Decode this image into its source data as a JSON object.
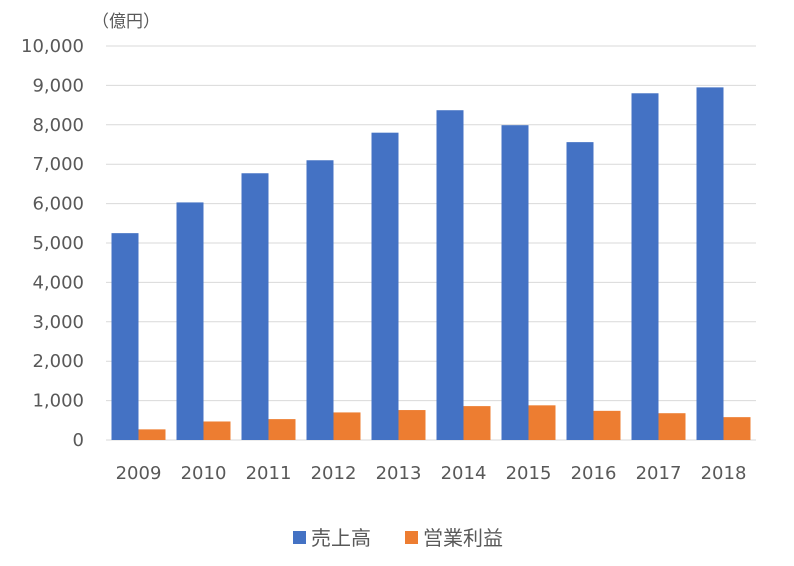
{
  "chart_data": {
    "type": "bar",
    "unit_label": "（億円）",
    "categories": [
      "2009",
      "2010",
      "2011",
      "2012",
      "2013",
      "2014",
      "2015",
      "2016",
      "2017",
      "2018"
    ],
    "series": [
      {
        "name": "売上高",
        "color": "#4472c4",
        "values": [
          5250,
          6030,
          6770,
          7100,
          7800,
          8370,
          7990,
          7560,
          8800,
          8950
        ]
      },
      {
        "name": "営業利益",
        "color": "#ed7d31",
        "values": [
          270,
          470,
          530,
          700,
          760,
          860,
          880,
          740,
          680,
          580
        ]
      }
    ],
    "ylim": [
      0,
      10000
    ],
    "yticks": [
      "0",
      "1,000",
      "2,000",
      "3,000",
      "4,000",
      "5,000",
      "6,000",
      "7,000",
      "8,000",
      "9,000",
      "10,000"
    ],
    "grid": true,
    "legend_position": "bottom"
  }
}
